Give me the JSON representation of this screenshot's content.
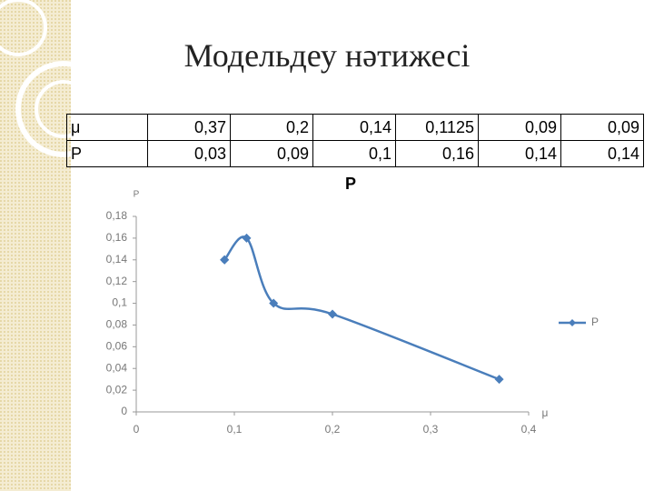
{
  "title": "Модельдеу нәтижесі",
  "table": {
    "rows": [
      [
        "μ",
        "0,37",
        "0,2",
        "0,14",
        "0,1125",
        "0,09",
        "0,09"
      ],
      [
        "P",
        "0,03",
        "0,09",
        "0,1",
        "0,16",
        "0,14",
        "0,14"
      ]
    ]
  },
  "chart_data": {
    "type": "scatter-line",
    "title": "P",
    "x_label": "μ",
    "y_label": "P",
    "series": [
      {
        "name": "P",
        "color": "#4a7ebb",
        "x": [
          0.37,
          0.2,
          0.14,
          0.1125,
          0.09,
          0.09
        ],
        "values": [
          0.03,
          0.09,
          0.1,
          0.16,
          0.14,
          0.14
        ]
      }
    ],
    "xlim": [
      0,
      0.4
    ],
    "xticks": [
      0,
      {
        "value": 0.1,
        "label": "0,1"
      },
      {
        "value": 0.2,
        "label": "0,2"
      },
      {
        "value": 0.3,
        "label": "0,3"
      },
      {
        "value": 0.4,
        "label": "0,4"
      }
    ],
    "ylim": [
      0,
      0.18
    ],
    "yticks": [
      0,
      {
        "value": 0.02,
        "label": "0,02"
      },
      {
        "value": 0.04,
        "label": "0,04"
      },
      {
        "value": 0.06,
        "label": "0,06"
      },
      {
        "value": 0.08,
        "label": "0,08"
      },
      {
        "value": 0.1,
        "label": "0,1"
      },
      {
        "value": 0.12,
        "label": "0,12"
      },
      {
        "value": 0.14,
        "label": "0,14"
      },
      {
        "value": 0.16,
        "label": "0,16"
      },
      {
        "value": 0.18,
        "label": "0,18"
      }
    ],
    "grid": false,
    "legend": "right"
  }
}
